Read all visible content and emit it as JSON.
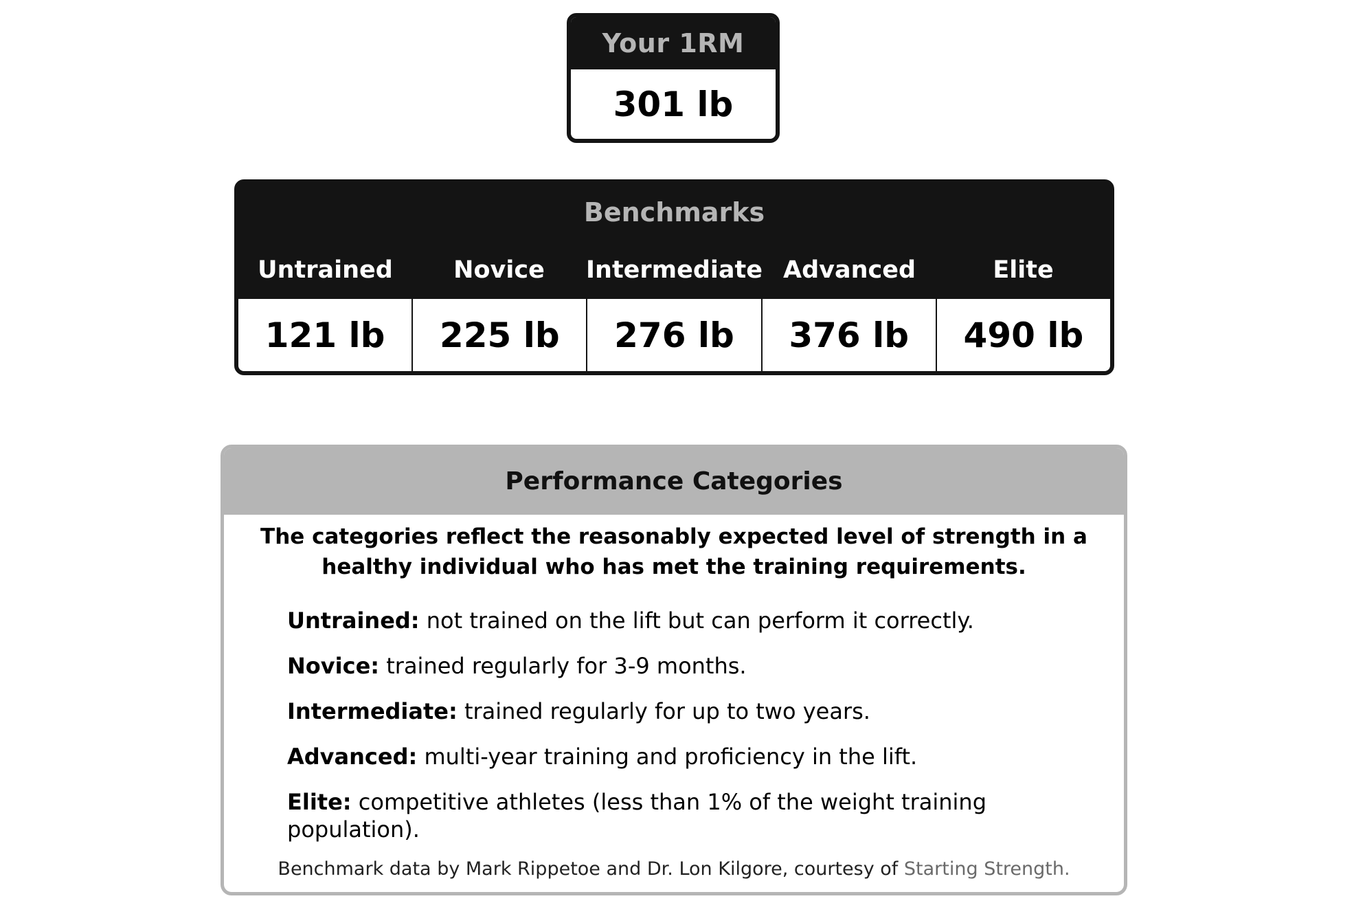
{
  "one_rm": {
    "label": "Your 1RM",
    "value": "301 lb"
  },
  "benchmarks": {
    "title": "Benchmarks",
    "levels": [
      {
        "label": "Untrained",
        "value": "121 lb"
      },
      {
        "label": "Novice",
        "value": "225 lb"
      },
      {
        "label": "Intermediate",
        "value": "276 lb"
      },
      {
        "label": "Advanced",
        "value": "376 lb"
      },
      {
        "label": "Elite",
        "value": "490 lb"
      }
    ]
  },
  "performance": {
    "title": "Performance Categories",
    "intro": "The categories reflect the reasonably expected level of strength in a healthy individual who has met the training requirements.",
    "items": [
      {
        "term": "Untrained:",
        "desc": " not trained on the lift but can perform it correctly."
      },
      {
        "term": "Novice:",
        "desc": " trained regularly for 3-9 months."
      },
      {
        "term": "Intermediate:",
        "desc": " trained regularly for up to two years."
      },
      {
        "term": "Advanced:",
        "desc": " multi-year training and proficiency in the lift."
      },
      {
        "term": "Elite:",
        "desc": " competitive athletes (less than 1% of the weight training population)."
      }
    ],
    "footer_text": "Benchmark data by Mark Rippetoe and Dr. Lon Kilgore, courtesy of ",
    "footer_link": "Starting Strength."
  },
  "colors": {
    "dark": "#141414",
    "header_text": "#b5b5b5",
    "panel_gray": "#b5b5b5",
    "link_gray": "#6a6a6a"
  }
}
